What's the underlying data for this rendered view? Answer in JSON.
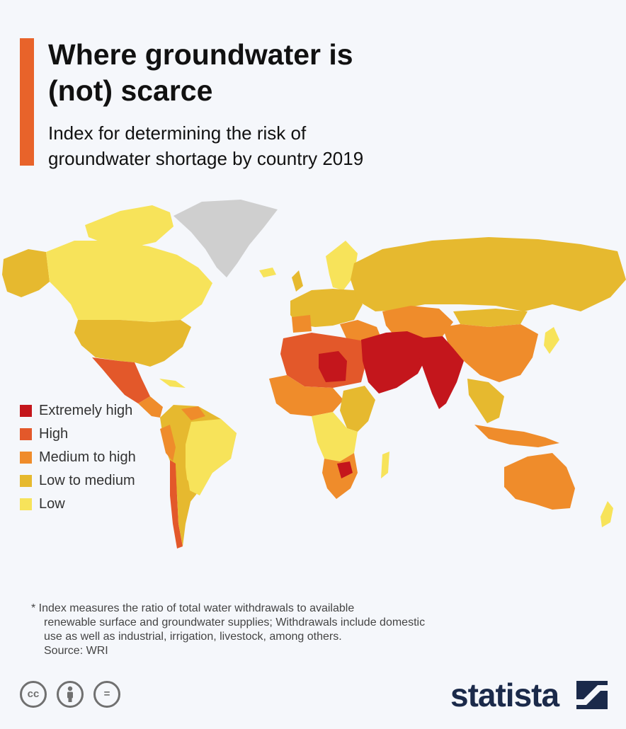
{
  "header": {
    "title_line1": "Where groundwater is",
    "title_line2": "(not) scarce",
    "subtitle_line1": "Index for determining the risk of",
    "subtitle_line2": "groundwater shortage by country 2019"
  },
  "colors": {
    "accent": "#e8632a",
    "extremely_high": "#c4161c",
    "high": "#e3582a",
    "medium_to_high": "#ef8c2b",
    "low_to_medium": "#e6b92f",
    "low": "#f7e35a",
    "no_data": "#cfcfcf",
    "brand": "#1b2a4a"
  },
  "legend": {
    "items": [
      {
        "label": "Extremely high",
        "color": "#c4161c"
      },
      {
        "label": "High",
        "color": "#e3582a"
      },
      {
        "label": "Medium to high",
        "color": "#ef8c2b"
      },
      {
        "label": "Low to medium",
        "color": "#e6b92f"
      },
      {
        "label": "Low",
        "color": "#f7e35a"
      }
    ]
  },
  "footnote": {
    "line1": "* Index measures the ratio of total water withdrawals to available",
    "line2": "renewable surface and groundwater supplies; Withdrawals include domestic",
    "line3": "use as well as industrial, irrigation, livestock, among others.",
    "source": "Source: WRI"
  },
  "license": {
    "icons": [
      "cc-icon",
      "attribution-icon",
      "noderivs-icon"
    ],
    "cc_text": "cc",
    "nd_text": "="
  },
  "brand": {
    "wordmark": "statista",
    "icon": "statista-logo-icon"
  }
}
